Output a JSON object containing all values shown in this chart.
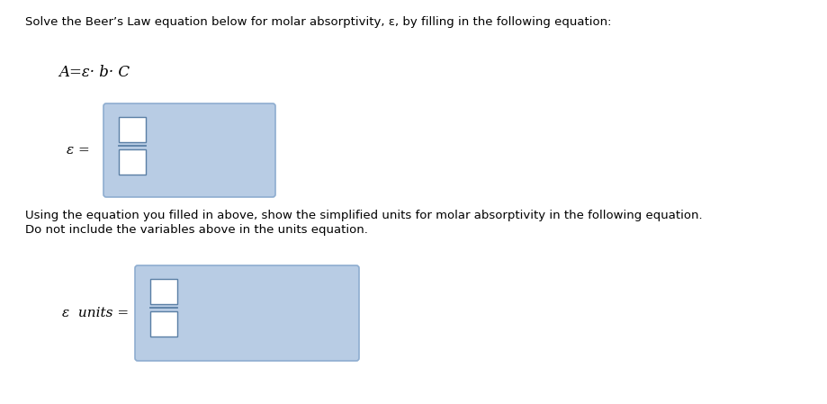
{
  "bg_color": "#ffffff",
  "text_color": "#000000",
  "title_text": "Solve the Beer’s Law equation below for molar absorptivity, ε, by filling in the following equation:",
  "equation_text": "A=ε· b· C",
  "epsilon_label1": "ε =",
  "second_instruction_line1": "Using the equation you filled in above, show the simplified units for molar absorptivity in the following equation.",
  "second_instruction_line2": "Do not include the variables above in the units equation.",
  "epsilon_label2": "ε  units =",
  "box_fill": "#b8cce4",
  "box_edge": "#8eadd0",
  "inner_box_fill": "#ffffff",
  "inner_box_edge": "#5a7fa5"
}
